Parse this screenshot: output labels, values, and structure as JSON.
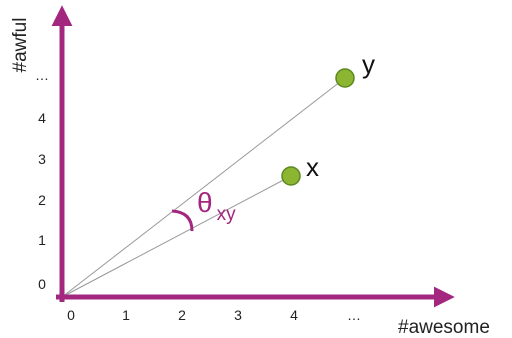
{
  "colors": {
    "axis": "#a3277f",
    "point_fill": "#8cb531",
    "point_stroke": "#5a8a1e",
    "vector_line": "#999999"
  },
  "x_axis": {
    "label": "#awesome",
    "ticks": [
      "0",
      "1",
      "2",
      "3",
      "4",
      "…"
    ]
  },
  "y_axis": {
    "label": "#awful",
    "ticks": [
      "0",
      "1",
      "2",
      "3",
      "4",
      "…"
    ]
  },
  "points": [
    {
      "label": "x",
      "x": 4,
      "y": 2
    },
    {
      "label": "y",
      "x": 5,
      "y": 3.7
    }
  ],
  "angle": {
    "symbol": "θ",
    "subscript": "xy"
  }
}
